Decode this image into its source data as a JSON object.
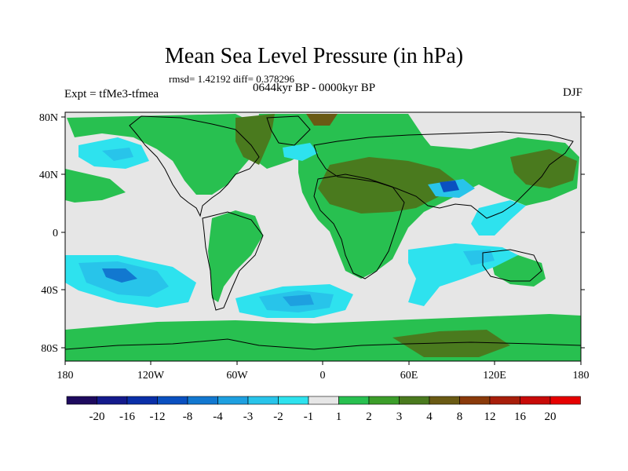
{
  "title": "Mean Sea Level Pressure (in hPa)",
  "stats": "rmsd= 1.42192 diff= 0.378296",
  "experiment": "Expt = tfMe3-tfmea",
  "period": "0644kyr BP - 0000kyr BP",
  "season": "DJF",
  "lat_ticks": [
    "80N",
    "40N",
    "0",
    "40S",
    "80S"
  ],
  "lon_ticks": [
    "180",
    "120W",
    "60W",
    "0",
    "60E",
    "120E",
    "180"
  ],
  "colorbar": {
    "labels": [
      "-20",
      "-16",
      "-12",
      "-8",
      "-4",
      "-3",
      "-2",
      "-1",
      "1",
      "2",
      "3",
      "4",
      "8",
      "12",
      "16",
      "20"
    ],
    "colors": [
      "#1e0a5e",
      "#141a8c",
      "#0a2fa8",
      "#0a50c0",
      "#1278d0",
      "#1ea0e0",
      "#28c4ea",
      "#2ee2ee",
      "#e6e6e6",
      "#28c050",
      "#3c9e2a",
      "#4a7a1e",
      "#6a5a14",
      "#8a3a0a",
      "#a81e0a",
      "#c80a08",
      "#e60000"
    ]
  },
  "palette": {
    "neutral": "#e6e6e6",
    "pos1": "#28c050",
    "pos2": "#3c9e2a",
    "pos3": "#4a7a1e",
    "pos4": "#6a5a14",
    "neg1": "#2ee2ee",
    "neg2": "#28c4ea",
    "neg3": "#1ea0e0",
    "neg4": "#1278d0"
  }
}
